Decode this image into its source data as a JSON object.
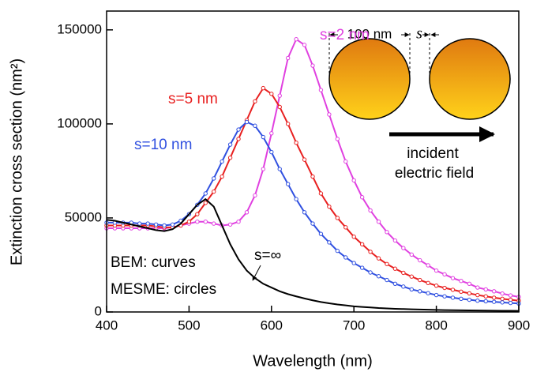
{
  "chart_data": {
    "type": "line",
    "xlabel": "Wavelength (nm)",
    "ylabel": "Extinction cross section (nm²)",
    "x": [
      400,
      410,
      420,
      430,
      440,
      450,
      460,
      470,
      480,
      490,
      500,
      510,
      520,
      530,
      540,
      550,
      560,
      570,
      580,
      590,
      600,
      610,
      620,
      630,
      640,
      650,
      660,
      670,
      680,
      690,
      700,
      710,
      720,
      730,
      740,
      750,
      760,
      770,
      780,
      790,
      800,
      810,
      820,
      830,
      840,
      850,
      860,
      870,
      880,
      890,
      900
    ],
    "series": [
      {
        "name": "s=2 nm",
        "color": "#e040e0",
        "markers": true,
        "values": [
          44500,
          44500,
          44500,
          44500,
          44500,
          44500,
          44500,
          44500,
          45000,
          46000,
          47000,
          48000,
          48000,
          47000,
          46000,
          46500,
          48000,
          53000,
          62000,
          76000,
          95000,
          115000,
          135000,
          145000,
          142000,
          131000,
          118000,
          105000,
          92000,
          80000,
          70000,
          61000,
          54000,
          48000,
          42500,
          38000,
          34000,
          30500,
          27500,
          24800,
          22000,
          20000,
          18000,
          16500,
          15000,
          13000,
          12000,
          11000,
          9800,
          8800,
          8000
        ]
      },
      {
        "name": "s=5 nm",
        "color": "#e82020",
        "markers": true,
        "values": [
          46000,
          46000,
          46000,
          46000,
          46000,
          46000,
          45500,
          45000,
          45000,
          46000,
          48000,
          52000,
          58000,
          64000,
          72000,
          82000,
          92000,
          102000,
          112000,
          119000,
          116000,
          109000,
          100000,
          90000,
          81000,
          72000,
          63000,
          56000,
          50000,
          45000,
          40000,
          36000,
          32000,
          28500,
          25500,
          23000,
          20800,
          18800,
          17000,
          15400,
          14000,
          12800,
          11800,
          10800,
          9900,
          9000,
          8300,
          7600,
          7000,
          6500,
          6000
        ]
      },
      {
        "name": "s=10 nm",
        "color": "#3050e0",
        "markers": true,
        "values": [
          47500,
          47500,
          47500,
          47500,
          47000,
          47000,
          46500,
          46000,
          46500,
          48500,
          52000,
          57000,
          63000,
          71000,
          80000,
          89000,
          97000,
          101000,
          99000,
          93000,
          85000,
          76000,
          68000,
          60000,
          53000,
          47000,
          41500,
          37000,
          32500,
          29000,
          26000,
          23500,
          21000,
          19000,
          17000,
          15000,
          13500,
          12000,
          11000,
          10000,
          9000,
          8300,
          7600,
          7000,
          6500,
          6000,
          5700,
          5400,
          5100,
          4800,
          4500
        ]
      },
      {
        "name": "s=∞",
        "color": "#000000",
        "markers": false,
        "values": [
          49000,
          48500,
          47500,
          46500,
          45500,
          44500,
          43500,
          43000,
          44000,
          47000,
          52000,
          57000,
          60000,
          56000,
          46000,
          36000,
          28000,
          22000,
          18000,
          15000,
          13000,
          11000,
          9500,
          8300,
          7200,
          6200,
          5300,
          4600,
          4000,
          3500,
          3000,
          2700,
          2400,
          2100,
          1900,
          1700,
          1550,
          1400,
          1300,
          1200,
          1100,
          1000,
          950,
          900,
          850,
          800,
          750,
          700,
          650,
          620,
          600
        ]
      }
    ],
    "xlim": [
      400,
      900
    ],
    "xticks": [
      400,
      500,
      600,
      700,
      800,
      900
    ],
    "ylim": [
      0,
      160000
    ],
    "yticks": [
      0,
      50000,
      100000,
      150000
    ],
    "annotations": [
      "BEM: curves",
      "MESME: circles",
      "100 nm",
      "s",
      "incident",
      "electric field"
    ]
  }
}
